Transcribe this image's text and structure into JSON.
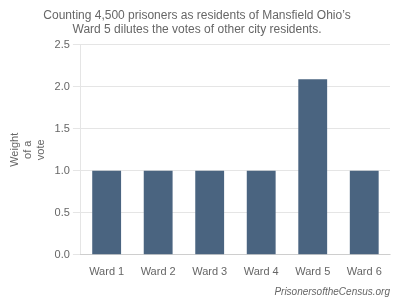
{
  "chart_data": {
    "type": "bar",
    "title": "Counting 4,500 prisoners as residents of Mansfield Ohio’s\nWard 5 dilutes the votes of other city residents.",
    "ylabel": "Weight\nof a\nvote",
    "categories": [
      "Ward 1",
      "Ward 2",
      "Ward 3",
      "Ward 4",
      "Ward 5",
      "Ward 6"
    ],
    "values": [
      1.0,
      1.0,
      1.0,
      1.0,
      2.09,
      1.0
    ],
    "color": "#4a6480",
    "ylim": [
      0,
      2.5
    ],
    "yticks": [
      {
        "value": 0,
        "label": "0.0"
      },
      0.5,
      {
        "value": 1.0,
        "label": "1.0"
      },
      1.5,
      {
        "value": 2.0,
        "label": "2.0"
      },
      2.5
    ],
    "grid": true,
    "annotations": [
      "PrisonersoftheCensus.org"
    ]
  }
}
